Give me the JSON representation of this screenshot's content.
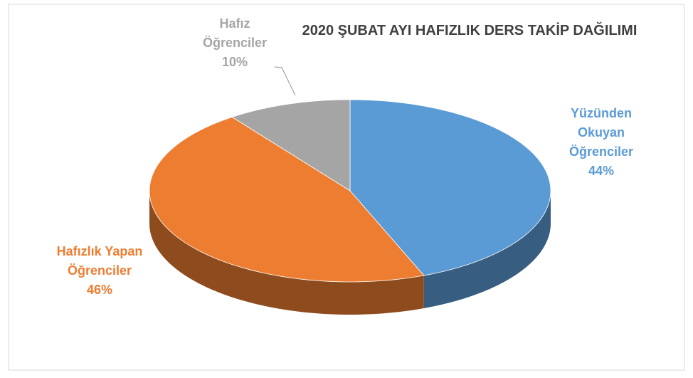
{
  "chart_data": {
    "type": "pie",
    "title": "2020 ŞUBAT AYI HAFIZLIK DERS TAKİP DAĞILIMI",
    "categories": [
      "Yüzünden Okuyan Öğrenciler",
      "Hafızlık Yapan Öğrenciler",
      "Hafız Öğrenciler"
    ],
    "values": [
      44,
      46,
      10
    ],
    "value_labels": [
      "44%",
      "46%",
      "10%"
    ],
    "colors": [
      "#5b9bd5",
      "#ed7d31",
      "#a5a5a5"
    ]
  }
}
